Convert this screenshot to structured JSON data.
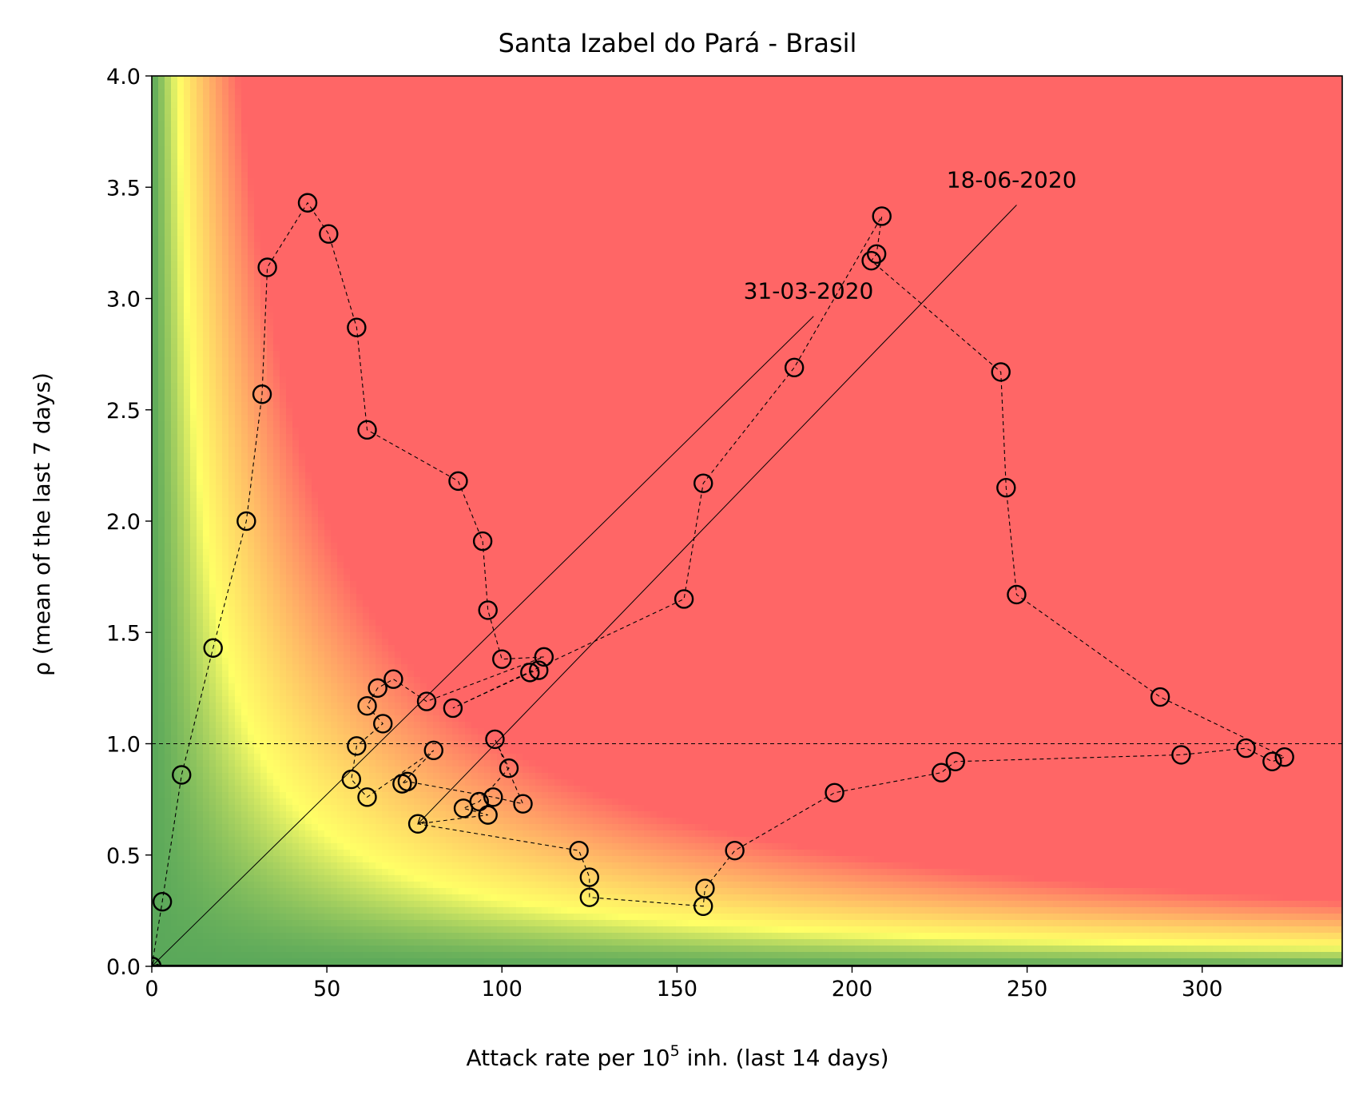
{
  "chart_data": {
    "type": "scatter",
    "title": "Santa Izabel do Pará - Brasil",
    "xlabel_prefix": "Attack rate per 10",
    "xlabel_sup": "5",
    "xlabel_suffix": " inh. (last 14 days)",
    "ylabel": "ρ (mean of the last 7 days)",
    "xlim": [
      0,
      340
    ],
    "ylim": [
      0,
      4.0
    ],
    "xticks": [
      0,
      50,
      100,
      150,
      200,
      250,
      300
    ],
    "yticks": [
      "0.0",
      "0.5",
      "1.0",
      "1.5",
      "2.0",
      "2.5",
      "3.0",
      "3.5",
      "4.0"
    ],
    "reference_line_y": 1.0,
    "background": {
      "description_colors": {
        "low": "#5aa85a",
        "mid": "#ffff66",
        "high": "#ff6666"
      },
      "risk_thresholds": [
        30,
        100
      ]
    },
    "series": [
      {
        "points": [
          [
            0,
            0.0
          ],
          [
            3,
            0.29
          ],
          [
            8.5,
            0.86
          ],
          [
            17.5,
            1.43
          ],
          [
            27,
            2.0
          ],
          [
            31.5,
            2.57
          ],
          [
            33,
            3.14
          ],
          [
            44.5,
            3.43
          ],
          [
            50.5,
            3.29
          ],
          [
            58.5,
            2.87
          ],
          [
            61.5,
            2.41
          ],
          [
            87.5,
            2.18
          ],
          [
            94.5,
            1.91
          ],
          [
            96,
            1.6
          ],
          [
            100,
            1.38
          ],
          [
            112,
            1.39
          ],
          [
            78.5,
            1.19
          ],
          [
            69,
            1.29
          ],
          [
            64.5,
            1.25
          ],
          [
            61.5,
            1.17
          ],
          [
            66,
            1.09
          ],
          [
            58.5,
            0.99
          ],
          [
            57,
            0.84
          ],
          [
            61.5,
            0.76
          ],
          [
            80.5,
            0.97
          ],
          [
            71.5,
            0.82
          ],
          [
            73,
            0.83
          ],
          [
            97.5,
            0.76
          ],
          [
            106,
            0.73
          ],
          [
            98,
            1.02
          ],
          [
            102,
            0.89
          ],
          [
            93.5,
            0.74
          ],
          [
            89,
            0.71
          ],
          [
            96,
            0.68
          ],
          [
            76,
            0.64
          ],
          [
            122,
            0.52
          ],
          [
            125,
            0.4
          ],
          [
            125,
            0.31
          ],
          [
            157.5,
            0.27
          ],
          [
            158,
            0.35
          ],
          [
            166.5,
            0.52
          ],
          [
            195,
            0.78
          ],
          [
            225.5,
            0.87
          ],
          [
            229.5,
            0.92
          ],
          [
            294,
            0.95
          ],
          [
            312.5,
            0.98
          ],
          [
            320,
            0.92
          ],
          [
            323.5,
            0.94
          ],
          [
            288,
            1.21
          ],
          [
            247,
            1.67
          ],
          [
            244,
            2.15
          ],
          [
            242.5,
            2.67
          ],
          [
            205.5,
            3.17
          ],
          [
            207,
            3.2
          ],
          [
            208.5,
            3.37
          ],
          [
            183.5,
            2.69
          ],
          [
            157.5,
            2.17
          ],
          [
            152,
            1.65
          ],
          [
            86,
            1.16
          ],
          [
            108,
            1.32
          ],
          [
            110.5,
            1.33
          ]
        ]
      }
    ],
    "annotations": [
      {
        "text": "31-03-2020",
        "label_at": [
          169,
          3.0
        ],
        "line_from": [
          189,
          2.92
        ],
        "arrow_to": [
          0,
          0.0
        ]
      },
      {
        "text": "18-06-2020",
        "label_at": [
          227,
          3.5
        ],
        "line_from": [
          247,
          3.42
        ],
        "arrow_to": [
          76,
          0.64
        ]
      }
    ]
  }
}
